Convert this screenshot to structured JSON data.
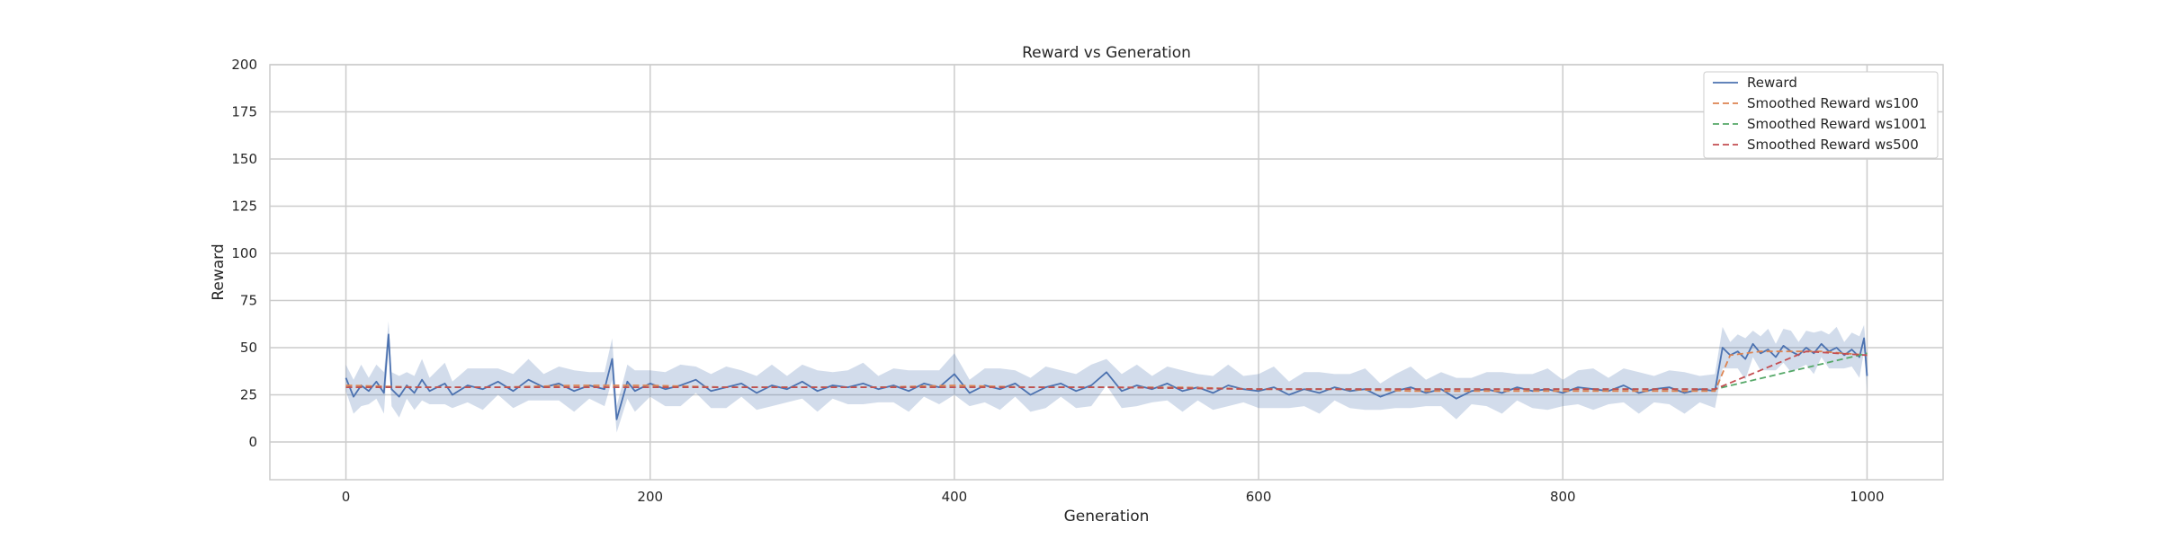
{
  "chart_data": {
    "type": "line",
    "title": "Reward vs Generation",
    "xlabel": "Generation",
    "ylabel": "Reward",
    "xlim": [
      -50,
      1050
    ],
    "ylim": [
      -20,
      200
    ],
    "xticks": [
      0,
      200,
      400,
      600,
      800,
      1000
    ],
    "yticks": [
      0,
      25,
      50,
      75,
      100,
      125,
      150,
      175,
      200
    ],
    "grid": true,
    "legend_position": "top-right",
    "band": {
      "of": "Reward",
      "color": "#4c72b0",
      "opacity": 0.25
    },
    "series": [
      {
        "name": "Reward",
        "style": "solid",
        "color": "#4c72b0",
        "x": [
          0,
          5,
          10,
          15,
          20,
          25,
          28,
          30,
          35,
          40,
          45,
          50,
          55,
          60,
          65,
          70,
          80,
          90,
          100,
          110,
          120,
          130,
          140,
          150,
          160,
          170,
          175,
          178,
          185,
          190,
          200,
          210,
          220,
          230,
          240,
          250,
          260,
          270,
          280,
          290,
          300,
          310,
          320,
          330,
          340,
          350,
          360,
          370,
          380,
          390,
          400,
          410,
          420,
          430,
          440,
          450,
          460,
          470,
          480,
          490,
          500,
          510,
          520,
          530,
          540,
          550,
          560,
          570,
          580,
          590,
          600,
          610,
          620,
          630,
          640,
          650,
          660,
          670,
          680,
          690,
          700,
          710,
          720,
          730,
          740,
          750,
          760,
          770,
          780,
          790,
          800,
          810,
          820,
          830,
          840,
          850,
          860,
          870,
          880,
          890,
          900,
          905,
          910,
          915,
          920,
          925,
          930,
          935,
          940,
          945,
          950,
          955,
          960,
          965,
          970,
          975,
          980,
          985,
          990,
          995,
          998,
          1000
        ],
        "y": [
          34,
          24,
          30,
          27,
          32,
          26,
          57,
          28,
          24,
          30,
          26,
          33,
          27,
          29,
          31,
          25,
          30,
          28,
          32,
          27,
          33,
          29,
          31,
          27,
          30,
          28,
          44,
          12,
          32,
          27,
          31,
          28,
          30,
          33,
          27,
          29,
          31,
          26,
          30,
          28,
          32,
          27,
          30,
          29,
          31,
          28,
          30,
          27,
          31,
          29,
          36,
          26,
          30,
          28,
          31,
          25,
          29,
          31,
          27,
          30,
          37,
          27,
          30,
          28,
          31,
          27,
          29,
          26,
          30,
          28,
          27,
          29,
          25,
          28,
          26,
          29,
          27,
          28,
          24,
          27,
          29,
          26,
          28,
          23,
          27,
          28,
          26,
          29,
          27,
          28,
          26,
          29,
          28,
          27,
          30,
          26,
          28,
          29,
          26,
          28,
          27,
          50,
          46,
          48,
          44,
          52,
          47,
          49,
          45,
          51,
          48,
          46,
          50,
          47,
          52,
          48,
          50,
          46,
          49,
          45,
          55,
          35
        ]
      },
      {
        "name": "Smoothed Reward ws100",
        "style": "dashed",
        "color": "#dd8452",
        "x": [
          0,
          50,
          100,
          150,
          200,
          250,
          300,
          350,
          400,
          450,
          500,
          550,
          600,
          650,
          700,
          750,
          800,
          850,
          900,
          910,
          930,
          950,
          970,
          1000
        ],
        "y": [
          30,
          29,
          29,
          30,
          30,
          29,
          29,
          29,
          30,
          29,
          29,
          29,
          28,
          28,
          27,
          27,
          27,
          27,
          27,
          46,
          48,
          48,
          48,
          46
        ]
      },
      {
        "name": "Smoothed Reward ws1001",
        "style": "dashed",
        "color": "#55a868",
        "x": [
          0,
          100,
          200,
          300,
          400,
          500,
          600,
          700,
          800,
          900,
          1000
        ],
        "y": [
          29,
          29,
          29,
          29,
          29,
          29,
          28,
          28,
          28,
          28,
          47
        ]
      },
      {
        "name": "Smoothed Reward ws500",
        "style": "dashed",
        "color": "#c44e52",
        "x": [
          0,
          100,
          200,
          300,
          400,
          500,
          600,
          700,
          800,
          900,
          960,
          1000
        ],
        "y": [
          29,
          29,
          29,
          29,
          29,
          29,
          28,
          28,
          28,
          28,
          48,
          46
        ]
      }
    ]
  }
}
